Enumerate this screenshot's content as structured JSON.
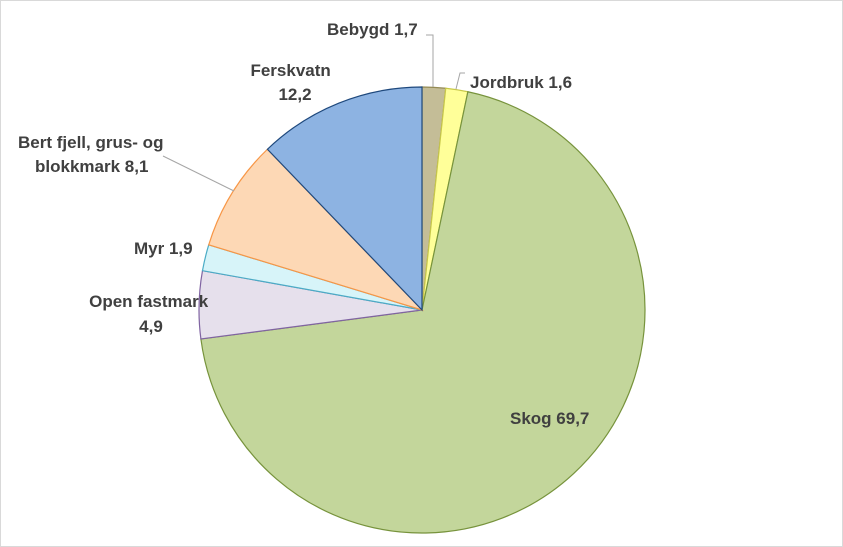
{
  "chart_data": {
    "type": "pie",
    "start_angle_deg": 0,
    "direction": "clockwise",
    "legend": "none",
    "slices": [
      {
        "label": "Bebygd",
        "value": 1.7,
        "display": "1,7",
        "color": "#c4bd97",
        "border": "#948a54"
      },
      {
        "label": "Jordbruk",
        "value": 1.6,
        "display": "1,6",
        "color": "#ffff99",
        "border": "#c8c84a"
      },
      {
        "label": "Skog",
        "value": 69.7,
        "display": "69,7",
        "color": "#c3d69b",
        "border": "#77933c"
      },
      {
        "label": "Open fastmark",
        "value": 4.9,
        "display": "4,9",
        "color": "#e6e0ec",
        "border": "#8064a2"
      },
      {
        "label": "Myr",
        "value": 1.9,
        "display": "1,9",
        "color": "#d7f4f9",
        "border": "#4bacc6"
      },
      {
        "label": "Bert fjell, grus- og blokkmark",
        "value": 8.1,
        "display": "8,1",
        "color": "#fdd8b5",
        "border": "#f79646"
      },
      {
        "label": "Ferskvatn",
        "value": 12.2,
        "display": "12,2",
        "color": "#8db3e2",
        "border": "#1f497d"
      }
    ]
  }
}
